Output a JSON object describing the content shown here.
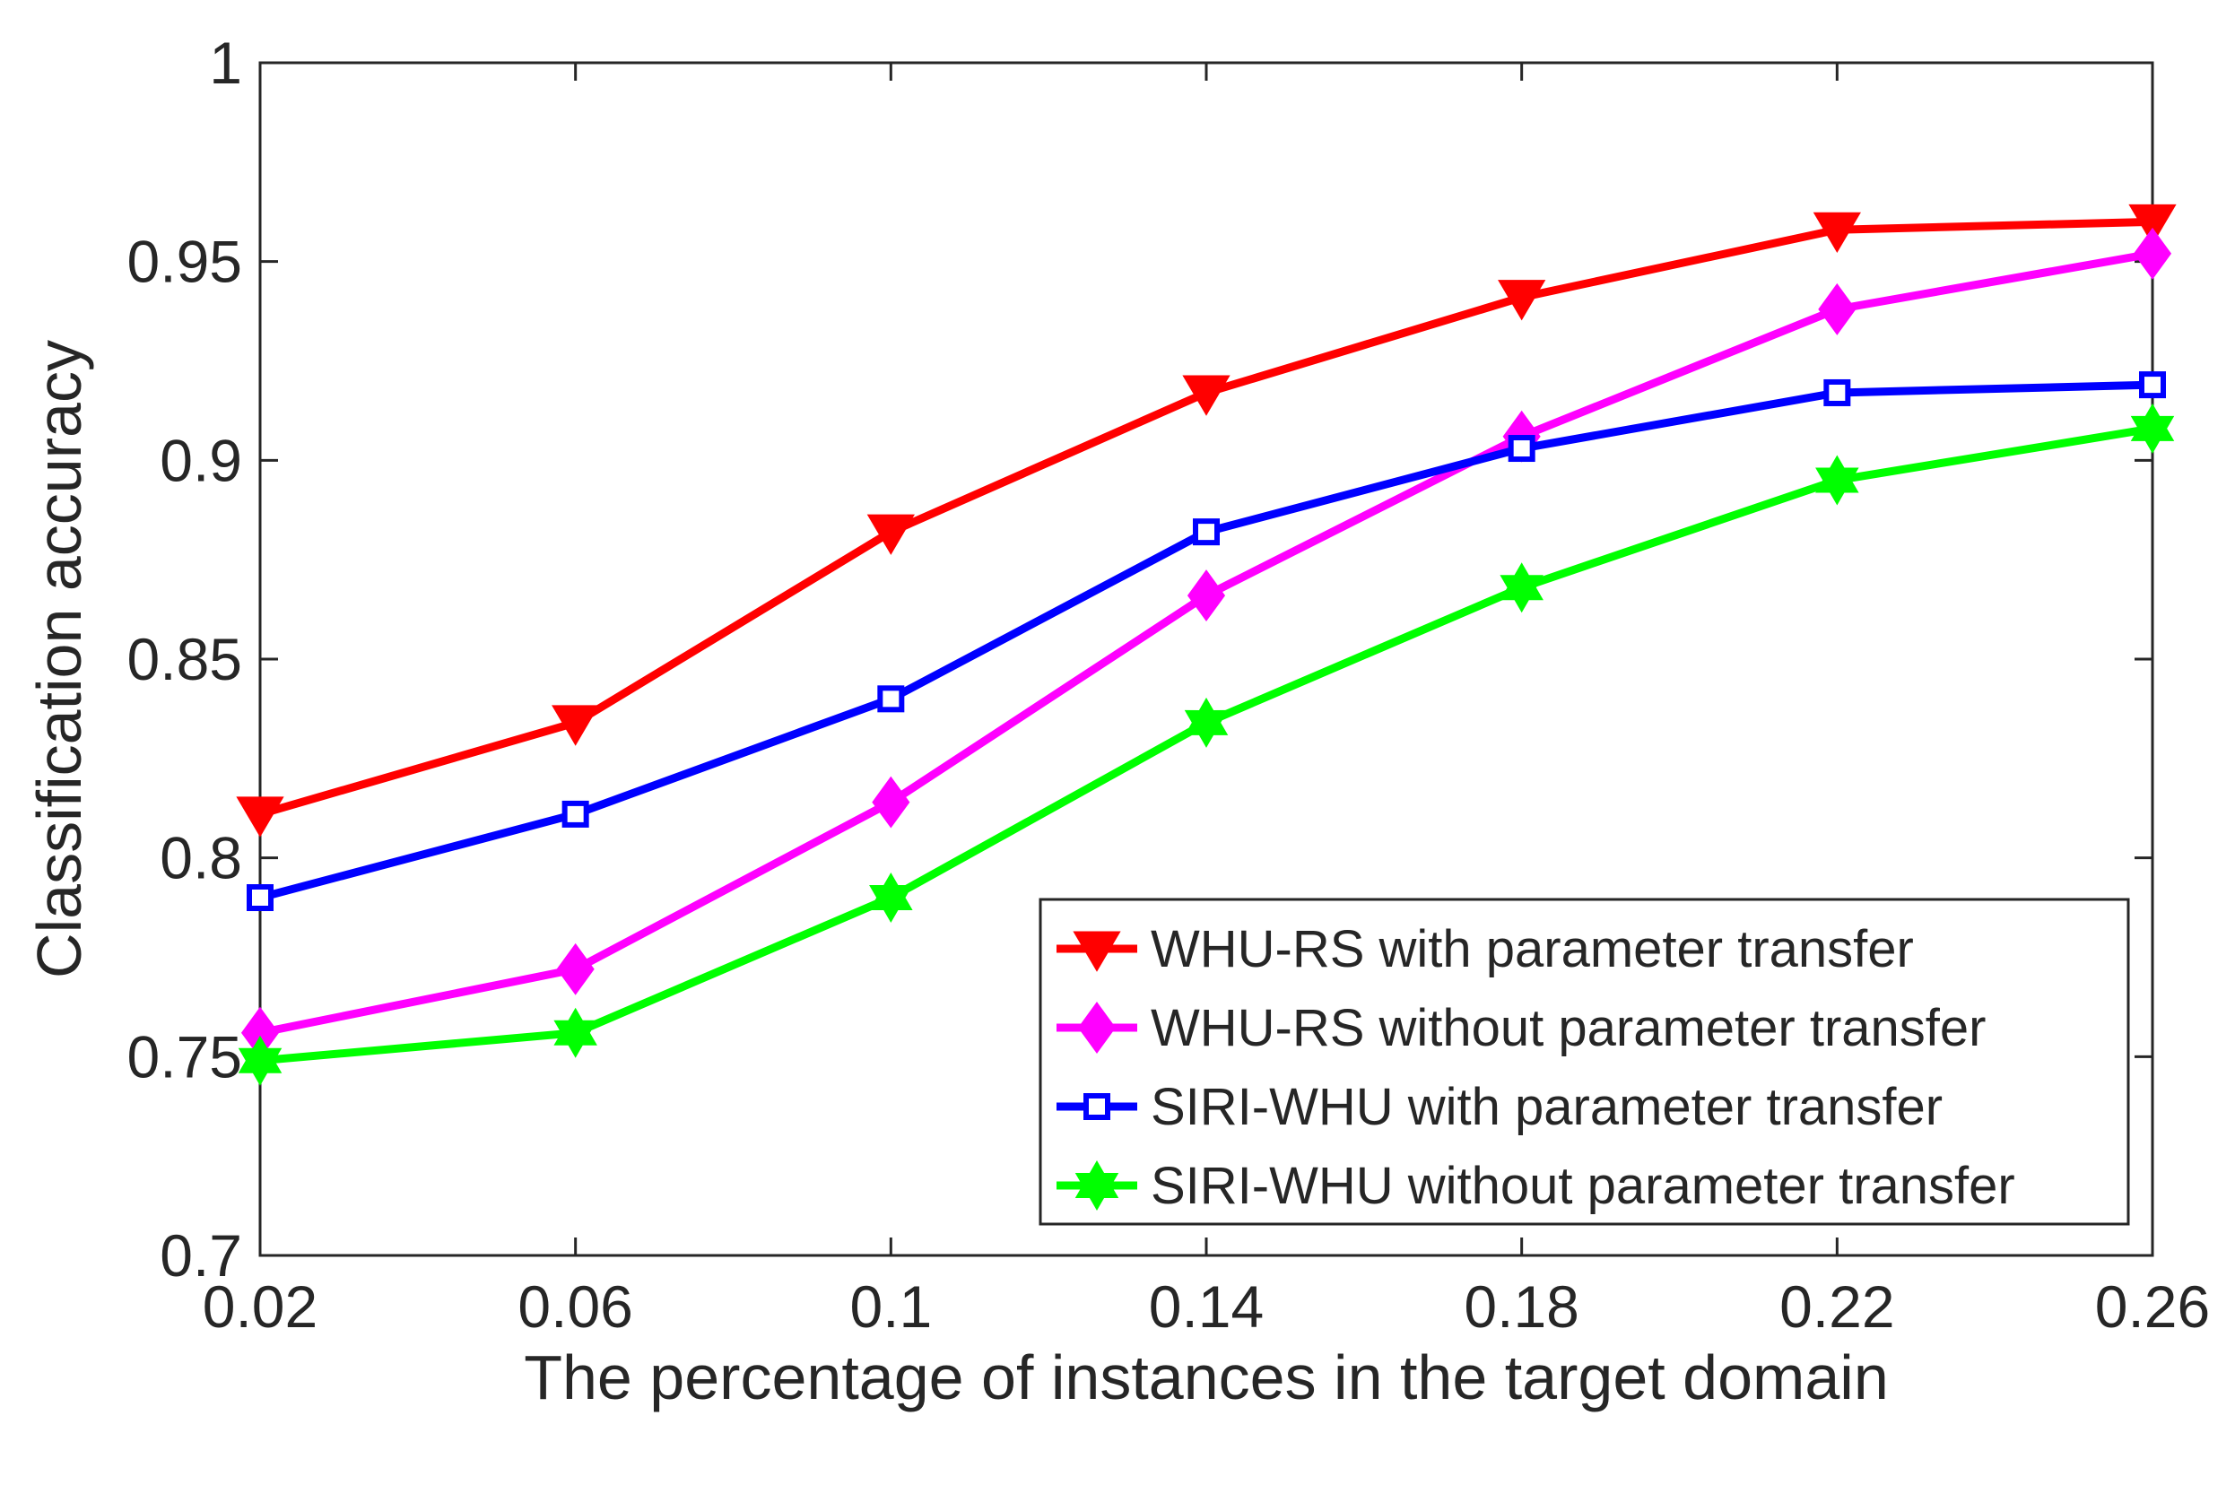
{
  "chart_data": {
    "type": "line",
    "title": "",
    "xlabel": "The percentage of instances in the target domain",
    "ylabel": "Classification accuracy",
    "x": [
      0.02,
      0.06,
      0.1,
      0.14,
      0.18,
      0.22,
      0.26
    ],
    "x_tick_labels": [
      "0.02",
      "0.06",
      "0.1",
      "0.14",
      "0.18",
      "0.22",
      "0.26"
    ],
    "xlim": [
      0.02,
      0.26
    ],
    "ylim": [
      0.7,
      1.0
    ],
    "y_ticks": [
      0.7,
      0.75,
      0.8,
      0.85,
      0.9,
      0.95,
      1.0
    ],
    "y_tick_labels": [
      "0.7",
      "0.75",
      "0.8",
      "0.85",
      "0.9",
      "0.95",
      "1"
    ],
    "grid": false,
    "legend_position": "bottom-right",
    "series": [
      {
        "name": "WHU-RS with parameter transfer",
        "color": "#ff0000",
        "marker": "triangle-down",
        "values": [
          0.811,
          0.834,
          0.882,
          0.917,
          0.941,
          0.958,
          0.96
        ]
      },
      {
        "name": "WHU-RS without parameter transfer",
        "color": "#ff00ff",
        "marker": "diamond",
        "values": [
          0.756,
          0.772,
          0.814,
          0.866,
          0.906,
          0.938,
          0.952
        ]
      },
      {
        "name": "SIRI-WHU with parameter transfer",
        "color": "#0000ff",
        "marker": "square",
        "values": [
          0.79,
          0.811,
          0.84,
          0.882,
          0.903,
          0.917,
          0.919
        ]
      },
      {
        "name": "SIRI-WHU without parameter transfer",
        "color": "#00ff00",
        "marker": "hexagram",
        "values": [
          0.749,
          0.756,
          0.79,
          0.834,
          0.868,
          0.895,
          0.908
        ]
      }
    ]
  }
}
